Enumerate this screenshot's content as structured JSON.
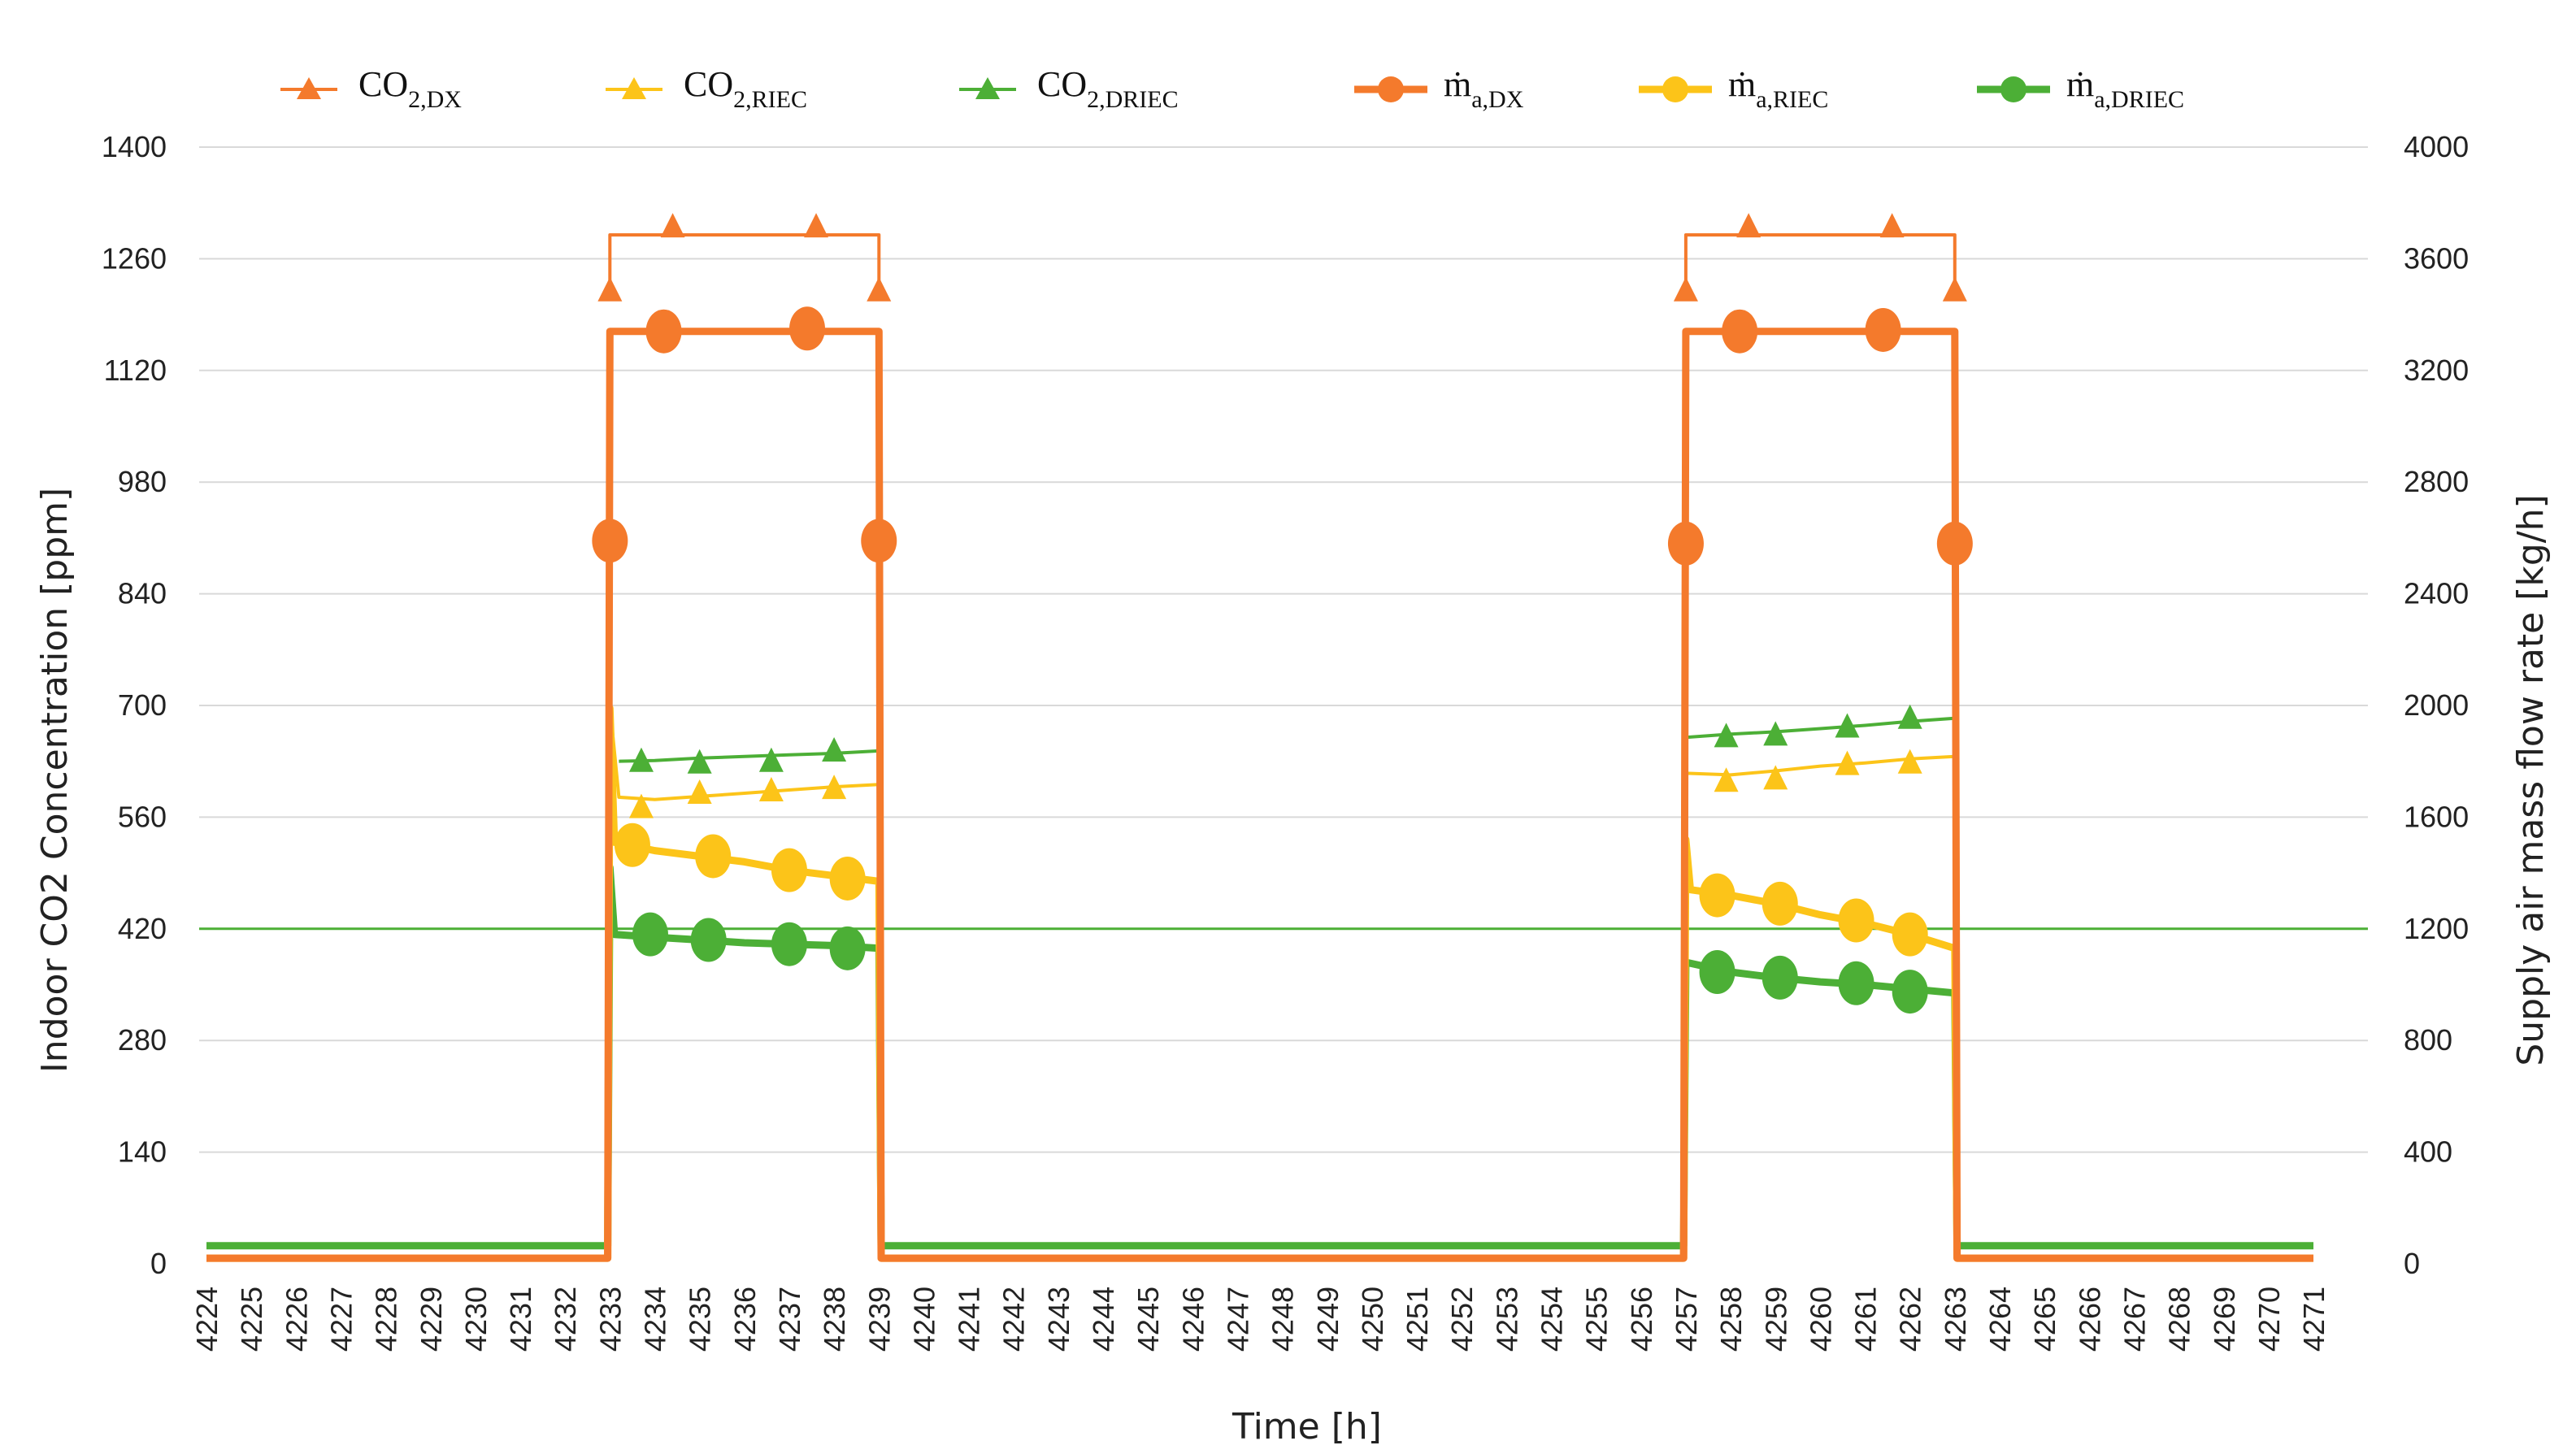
{
  "chart_data": {
    "type": "line",
    "title": "",
    "xlabel": "Time [h]",
    "ylabel": "Indoor CO2 Concentration  [ppm]",
    "y2label": "Supply air mass flow rate [kg/h]",
    "xlim": [
      4224,
      4271
    ],
    "ylim": [
      0,
      1400
    ],
    "y2lim": [
      0,
      4000
    ],
    "yticks": [
      0,
      140,
      280,
      420,
      560,
      700,
      840,
      980,
      1120,
      1260,
      1400
    ],
    "y2ticks": [
      0,
      400,
      800,
      1200,
      1600,
      2000,
      2400,
      2800,
      3200,
      3600,
      4000
    ],
    "xticks": [
      4224,
      4225,
      4226,
      4227,
      4228,
      4229,
      4230,
      4231,
      4232,
      4233,
      4234,
      4235,
      4236,
      4237,
      4238,
      4239,
      4240,
      4241,
      4242,
      4243,
      4244,
      4245,
      4246,
      4247,
      4248,
      4249,
      4250,
      4251,
      4252,
      4253,
      4254,
      4255,
      4256,
      4257,
      4258,
      4259,
      4260,
      4261,
      4262,
      4263,
      4264,
      4265,
      4266,
      4267,
      4268,
      4269,
      4270,
      4271
    ],
    "reference_line": {
      "y": 420,
      "color": "#4caf36"
    },
    "legend_position": "top",
    "series": [
      {
        "name": "CO2,DX",
        "legend_main": "CO",
        "legend_sub": "2,DX",
        "axis": "left",
        "marker": "triangle",
        "color": "#f47a2c",
        "points": [
          [
            4224,
            null
          ],
          [
            4233,
            1220
          ],
          [
            4233,
            1290
          ],
          [
            4234.4,
            1290
          ],
          [
            4237.6,
            1290
          ],
          [
            4239,
            1290
          ],
          [
            4239,
            1220
          ],
          [
            4239,
            null
          ],
          [
            4257,
            1220
          ],
          [
            4257,
            1290
          ],
          [
            4258.4,
            1290
          ],
          [
            4261.6,
            1290
          ],
          [
            4263,
            1290
          ],
          [
            4263,
            1220
          ]
        ],
        "markers": [
          [
            4233,
            1222
          ],
          [
            4234.4,
            1302
          ],
          [
            4237.6,
            1302
          ],
          [
            4239,
            1222
          ],
          [
            4257,
            1222
          ],
          [
            4258.4,
            1302
          ],
          [
            4261.6,
            1302
          ],
          [
            4263,
            1222
          ]
        ]
      },
      {
        "name": "CO2,RIEC",
        "legend_main": "CO",
        "legend_sub": "2,RIEC",
        "axis": "left",
        "marker": "triangle",
        "color": "#fcc419",
        "points": [
          [
            4233,
            700
          ],
          [
            4233.2,
            585
          ],
          [
            4234,
            582
          ],
          [
            4235,
            586
          ],
          [
            4236,
            590
          ],
          [
            4237,
            594
          ],
          [
            4238,
            598
          ],
          [
            4239,
            601
          ],
          [
            4239,
            null
          ],
          [
            4257,
            615
          ],
          [
            4258,
            613
          ],
          [
            4259,
            618
          ],
          [
            4260,
            624
          ],
          [
            4261,
            628
          ],
          [
            4262,
            633
          ],
          [
            4263,
            636
          ]
        ],
        "markers": [
          [
            4233.7,
            574
          ],
          [
            4235,
            592
          ],
          [
            4236.6,
            595
          ],
          [
            4238,
            598
          ],
          [
            4257.9,
            607
          ],
          [
            4259,
            610
          ],
          [
            4260.6,
            628
          ],
          [
            4262,
            630
          ]
        ]
      },
      {
        "name": "CO2,DRIEC",
        "legend_main": "CO",
        "legend_sub": "2,DRIEC",
        "axis": "left",
        "marker": "triangle",
        "color": "#4caf36",
        "points": [
          [
            4233.2,
            630
          ],
          [
            4234,
            631
          ],
          [
            4235,
            634
          ],
          [
            4236,
            636
          ],
          [
            4237,
            638
          ],
          [
            4238,
            640
          ],
          [
            4239,
            643
          ],
          [
            4239,
            null
          ],
          [
            4257,
            660
          ],
          [
            4258,
            664
          ],
          [
            4259,
            667
          ],
          [
            4260,
            671
          ],
          [
            4261,
            675
          ],
          [
            4262,
            680
          ],
          [
            4263,
            684
          ]
        ],
        "markers": [
          [
            4233.7,
            632
          ],
          [
            4235,
            630
          ],
          [
            4236.6,
            632
          ],
          [
            4238,
            645
          ],
          [
            4257.9,
            663
          ],
          [
            4259,
            665
          ],
          [
            4260.6,
            675
          ],
          [
            4262,
            686
          ]
        ]
      },
      {
        "name": "m_a,DX",
        "legend_main": "ṁ",
        "legend_sub": "a,DX",
        "axis": "right",
        "marker": "circle",
        "color": "#f47a2c",
        "points": [
          [
            4224,
            20
          ],
          [
            4232.95,
            20
          ],
          [
            4233,
            3340
          ],
          [
            4239,
            3340
          ],
          [
            4239.05,
            20
          ],
          [
            4256.95,
            20
          ],
          [
            4257,
            3340
          ],
          [
            4263,
            3340
          ],
          [
            4263.05,
            20
          ],
          [
            4271,
            20
          ]
        ],
        "markers": [
          [
            4233,
            2590
          ],
          [
            4234.2,
            3340
          ],
          [
            4237.4,
            3350
          ],
          [
            4239,
            2590
          ],
          [
            4257,
            2580
          ],
          [
            4258.2,
            3340
          ],
          [
            4261.4,
            3345
          ],
          [
            4263,
            2580
          ]
        ]
      },
      {
        "name": "m_a,RIEC",
        "legend_main": "ṁ",
        "legend_sub": "a,RIEC",
        "axis": "right",
        "marker": "circle",
        "color": "#fcc419",
        "points": [
          [
            4224,
            20
          ],
          [
            4232.95,
            20
          ],
          [
            4233,
            1990
          ],
          [
            4233.1,
            1510
          ],
          [
            4234,
            1480
          ],
          [
            4235,
            1460
          ],
          [
            4236,
            1440
          ],
          [
            4237,
            1410
          ],
          [
            4238,
            1390
          ],
          [
            4239,
            1370
          ],
          [
            4239.05,
            20
          ],
          [
            4256.95,
            20
          ],
          [
            4257,
            1520
          ],
          [
            4257.1,
            1340
          ],
          [
            4258,
            1320
          ],
          [
            4259,
            1290
          ],
          [
            4260,
            1250
          ],
          [
            4261,
            1220
          ],
          [
            4262,
            1180
          ],
          [
            4263,
            1130
          ],
          [
            4263.05,
            20
          ],
          [
            4271,
            20
          ]
        ],
        "markers": [
          [
            4233.5,
            1500
          ],
          [
            4235.3,
            1460
          ],
          [
            4237,
            1410
          ],
          [
            4238.3,
            1380
          ],
          [
            4257.7,
            1320
          ],
          [
            4259.1,
            1290
          ],
          [
            4260.8,
            1230
          ],
          [
            4262,
            1180
          ]
        ]
      },
      {
        "name": "m_a,DRIEC",
        "legend_main": "ṁ",
        "legend_sub": "a,DRIEC",
        "axis": "right",
        "marker": "circle",
        "color": "#4caf36",
        "points": [
          [
            4224,
            65
          ],
          [
            4232.95,
            65
          ],
          [
            4233,
            1420
          ],
          [
            4233.1,
            1180
          ],
          [
            4234,
            1170
          ],
          [
            4235,
            1160
          ],
          [
            4236,
            1150
          ],
          [
            4237,
            1145
          ],
          [
            4238,
            1140
          ],
          [
            4239,
            1130
          ],
          [
            4239.05,
            65
          ],
          [
            4256.95,
            65
          ],
          [
            4257,
            1080
          ],
          [
            4258,
            1045
          ],
          [
            4259,
            1025
          ],
          [
            4260,
            1010
          ],
          [
            4261,
            1000
          ],
          [
            4262,
            985
          ],
          [
            4263,
            970
          ],
          [
            4263.05,
            65
          ],
          [
            4271,
            65
          ]
        ],
        "markers": [
          [
            4233.9,
            1180
          ],
          [
            4235.2,
            1160
          ],
          [
            4237,
            1145
          ],
          [
            4238.3,
            1130
          ],
          [
            4257.7,
            1045
          ],
          [
            4259.1,
            1025
          ],
          [
            4260.8,
            1005
          ],
          [
            4262,
            975
          ]
        ]
      }
    ]
  }
}
